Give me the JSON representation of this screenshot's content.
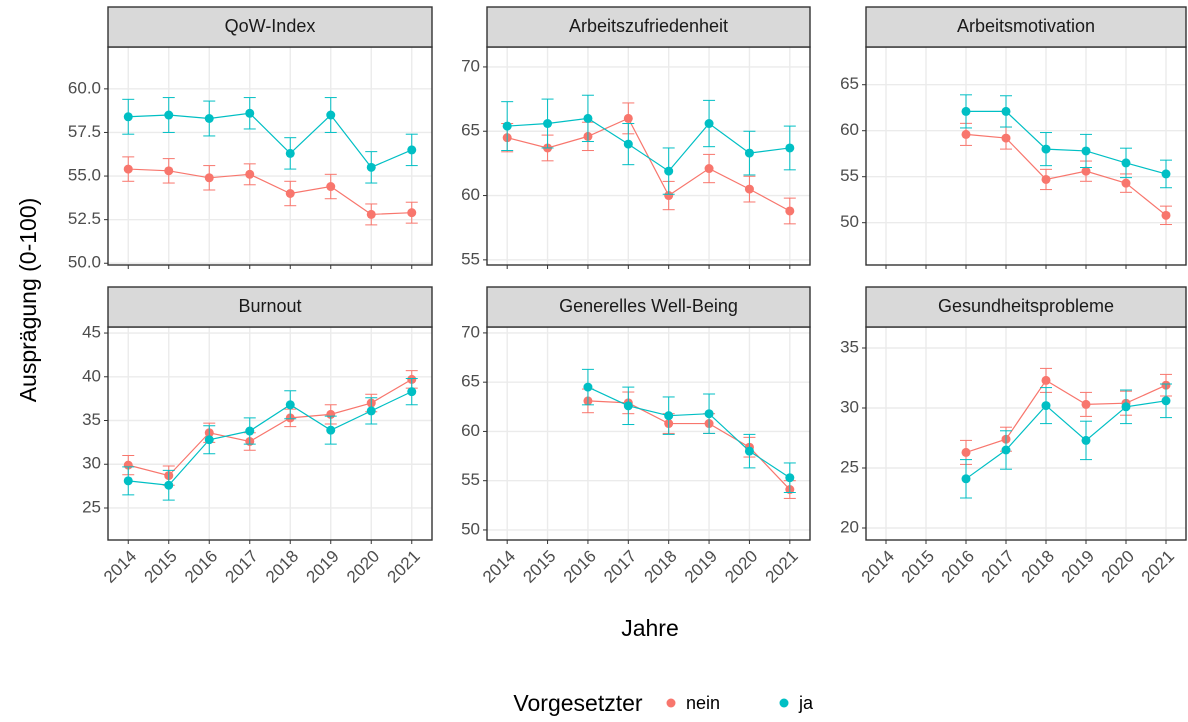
{
  "chart_data": [
    {
      "type": "line",
      "title": "QoW-Index",
      "categories": [
        "2014",
        "2015",
        "2016",
        "2017",
        "2018",
        "2019",
        "2020",
        "2021"
      ],
      "series": [
        {
          "name": "nein",
          "color": "#F8766D",
          "values": [
            55.4,
            55.3,
            54.9,
            55.1,
            54.0,
            54.4,
            52.8,
            52.9
          ],
          "errors": [
            0.7,
            0.7,
            0.7,
            0.6,
            0.7,
            0.7,
            0.6,
            0.6
          ]
        },
        {
          "name": "ja",
          "color": "#00BFC4",
          "values": [
            58.4,
            58.5,
            58.3,
            58.6,
            56.3,
            58.5,
            55.5,
            56.5
          ],
          "errors": [
            1.0,
            1.0,
            1.0,
            0.9,
            0.9,
            1.0,
            0.9,
            0.9
          ]
        }
      ],
      "ylim": [
        49.9,
        62.4
      ],
      "yticks": [
        {
          "value": 50,
          "label": "50.0"
        },
        52.5,
        {
          "value": 55,
          "label": "55.0"
        },
        57.5,
        {
          "value": 60,
          "label": "60.0"
        }
      ],
      "grid": true
    },
    {
      "type": "line",
      "title": "Arbeitszufriedenheit",
      "categories": [
        "2014",
        "2015",
        "2016",
        "2017",
        "2018",
        "2019",
        "2020",
        "2021"
      ],
      "series": [
        {
          "name": "nein",
          "color": "#F8766D",
          "values": [
            64.5,
            63.7,
            64.6,
            66.0,
            60.0,
            62.1,
            60.5,
            58.8
          ],
          "errors": [
            1.1,
            1.0,
            1.1,
            1.2,
            1.1,
            1.1,
            1.0,
            1.0
          ]
        },
        {
          "name": "ja",
          "color": "#00BFC4",
          "values": [
            65.4,
            65.6,
            66.0,
            64.0,
            61.9,
            65.6,
            63.3,
            63.7
          ],
          "errors": [
            1.9,
            1.9,
            1.8,
            1.6,
            1.8,
            1.8,
            1.7,
            1.7
          ]
        }
      ],
      "ylim": [
        54.6,
        71.55
      ],
      "yticks": [
        55,
        60,
        65,
        70
      ],
      "grid": true
    },
    {
      "type": "line",
      "title": "Arbeitsmotivation",
      "categories": [
        "2014",
        "2015",
        "2016",
        "2017",
        "2018",
        "2019",
        "2020",
        "2021"
      ],
      "series": [
        {
          "name": "nein",
          "color": "#F8766D",
          "values": [
            null,
            null,
            59.6,
            59.2,
            54.7,
            55.6,
            54.3,
            50.8
          ],
          "errors": [
            null,
            null,
            1.2,
            1.2,
            1.1,
            1.1,
            1.0,
            1.0
          ]
        },
        {
          "name": "ja",
          "color": "#00BFC4",
          "values": [
            null,
            null,
            62.1,
            62.1,
            58.0,
            57.8,
            56.5,
            55.3
          ],
          "errors": [
            null,
            null,
            1.8,
            1.7,
            1.8,
            1.8,
            1.6,
            1.5
          ]
        }
      ],
      "ylim": [
        45.4,
        69.1
      ],
      "yticks": [
        50,
        55,
        60,
        65
      ],
      "grid": true
    },
    {
      "type": "line",
      "title": "Burnout",
      "categories": [
        "2014",
        "2015",
        "2016",
        "2017",
        "2018",
        "2019",
        "2020",
        "2021"
      ],
      "series": [
        {
          "name": "nein",
          "color": "#F8766D",
          "values": [
            29.9,
            28.7,
            33.6,
            32.6,
            35.3,
            35.7,
            37.0,
            39.7
          ],
          "errors": [
            1.1,
            1.1,
            1.1,
            1.0,
            1.0,
            1.1,
            1.0,
            1.0
          ]
        },
        {
          "name": "ja",
          "color": "#00BFC4",
          "values": [
            28.1,
            27.6,
            32.8,
            33.8,
            36.8,
            33.9,
            36.1,
            38.3
          ],
          "errors": [
            1.6,
            1.7,
            1.6,
            1.5,
            1.6,
            1.6,
            1.5,
            1.5
          ]
        }
      ],
      "ylim": [
        21.34,
        45.69
      ],
      "yticks": [
        25,
        30,
        35,
        40,
        45
      ],
      "grid": true
    },
    {
      "type": "line",
      "title": "Generelles Well-Being",
      "categories": [
        "2014",
        "2015",
        "2016",
        "2017",
        "2018",
        "2019",
        "2020",
        "2021"
      ],
      "series": [
        {
          "name": "nein",
          "color": "#F8766D",
          "values": [
            null,
            null,
            63.1,
            62.9,
            60.8,
            60.8,
            58.4,
            54.1
          ],
          "errors": [
            null,
            null,
            1.2,
            1.1,
            1.0,
            1.0,
            1.0,
            0.9
          ]
        },
        {
          "name": "ja",
          "color": "#00BFC4",
          "values": [
            null,
            null,
            64.5,
            62.6,
            61.6,
            61.8,
            58.0,
            55.3
          ],
          "errors": [
            null,
            null,
            1.8,
            1.9,
            1.9,
            2.0,
            1.7,
            1.5
          ]
        }
      ],
      "ylim": [
        48.98,
        70.6
      ],
      "yticks": [
        50,
        55,
        60,
        65,
        70
      ],
      "grid": true
    },
    {
      "type": "line",
      "title": "Gesundheitsprobleme",
      "categories": [
        "2014",
        "2015",
        "2016",
        "2017",
        "2018",
        "2019",
        "2020",
        "2021"
      ],
      "series": [
        {
          "name": "nein",
          "color": "#F8766D",
          "values": [
            null,
            null,
            26.3,
            27.4,
            32.3,
            30.3,
            30.4,
            31.9
          ],
          "errors": [
            null,
            null,
            1.0,
            1.0,
            1.0,
            1.0,
            1.0,
            0.9
          ]
        },
        {
          "name": "ja",
          "color": "#00BFC4",
          "values": [
            null,
            null,
            24.1,
            26.5,
            30.2,
            27.3,
            30.1,
            30.6
          ],
          "errors": [
            null,
            null,
            1.6,
            1.6,
            1.5,
            1.6,
            1.4,
            1.4
          ]
        }
      ],
      "ylim": [
        19.0,
        36.75
      ],
      "yticks": [
        20,
        25,
        30,
        35
      ],
      "grid": true
    }
  ],
  "axis_labels": {
    "x": "Jahre",
    "y": "Ausprägung (0-100)"
  },
  "legend": {
    "title": "Vorgesetzter"
  }
}
